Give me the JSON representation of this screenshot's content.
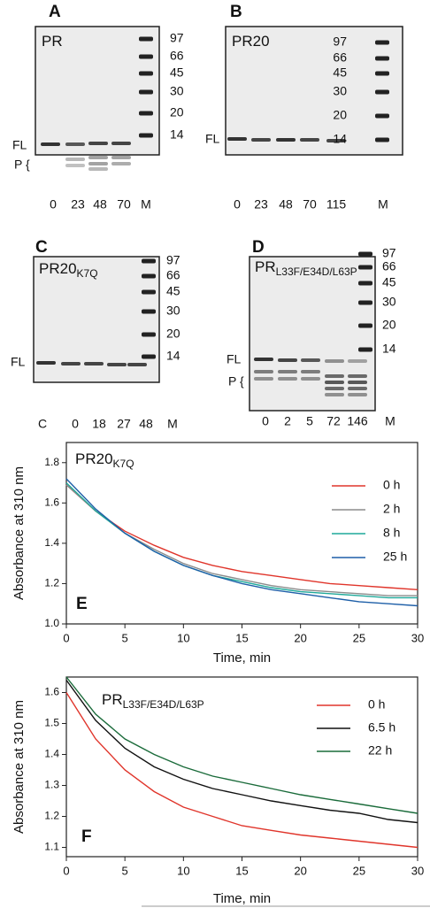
{
  "gels": [
    {
      "label": "A",
      "title": "PR",
      "markers": [
        "97",
        "66",
        "45",
        "30",
        "20",
        "14"
      ],
      "band_labels": [
        "FL",
        "P {"
      ],
      "lanes": [
        "0",
        "23",
        "48",
        "70",
        "M"
      ]
    },
    {
      "label": "B",
      "title": "PR20",
      "markers": [
        "97",
        "66",
        "45",
        "30",
        "20",
        "14"
      ],
      "band_labels": [
        "FL"
      ],
      "lanes": [
        "0",
        "23",
        "48",
        "70",
        "115",
        "M"
      ]
    },
    {
      "label": "C",
      "title": "PR20",
      "title_sub": "K7Q",
      "markers": [
        "97",
        "66",
        "45",
        "30",
        "20",
        "14"
      ],
      "band_labels": [
        "FL"
      ],
      "lanes": [
        "C",
        "0",
        "18",
        "27",
        "48",
        "M"
      ]
    },
    {
      "label": "D",
      "title": "PR",
      "title_sub": "L33F/E34D/L63P",
      "markers": [
        "97",
        "66",
        "45",
        "30",
        "20",
        "14"
      ],
      "band_labels": [
        "FL",
        "P {"
      ],
      "lanes": [
        "0",
        "2",
        "5",
        "72",
        "146",
        "M"
      ]
    }
  ],
  "chart_data": [
    {
      "type": "line",
      "panel": "E",
      "title": "PR20",
      "title_sub": "K7Q",
      "x_label": "Time, min",
      "y_label": "Absorbance at 310 nm",
      "x": [
        0,
        2.5,
        5,
        7.5,
        10,
        12.5,
        15,
        17.5,
        20,
        22.5,
        25,
        27.5,
        30
      ],
      "xlim": [
        0,
        30
      ],
      "xticks": [
        0,
        5,
        10,
        15,
        20,
        25,
        30
      ],
      "ylim": [
        1.0,
        1.9
      ],
      "yticks": [
        {
          "value": 1.0,
          "label": "1.0"
        },
        1.2,
        1.4,
        1.6,
        1.8
      ],
      "legend": "upper right",
      "series": [
        {
          "name": "0 h",
          "color": "#e0352b",
          "values": [
            1.69,
            1.56,
            1.46,
            1.39,
            1.33,
            1.29,
            1.26,
            1.24,
            1.22,
            1.2,
            1.19,
            1.18,
            1.17
          ]
        },
        {
          "name": "2 h",
          "color": "#8c8c8c",
          "values": [
            1.69,
            1.56,
            1.45,
            1.37,
            1.3,
            1.25,
            1.22,
            1.19,
            1.17,
            1.16,
            1.15,
            1.14,
            1.14
          ]
        },
        {
          "name": "8 h",
          "color": "#1fa99a",
          "values": [
            1.7,
            1.56,
            1.45,
            1.36,
            1.29,
            1.24,
            1.21,
            1.18,
            1.16,
            1.15,
            1.14,
            1.13,
            1.13
          ]
        },
        {
          "name": "25 h",
          "color": "#1e5fa8",
          "values": [
            1.72,
            1.57,
            1.45,
            1.36,
            1.29,
            1.24,
            1.2,
            1.17,
            1.15,
            1.13,
            1.11,
            1.1,
            1.09
          ]
        }
      ]
    },
    {
      "type": "line",
      "panel": "F",
      "title": "PR",
      "title_sub": "L33F/E34D/L63P",
      "x_label": "Time, min",
      "y_label": "Absorbance at 310 nm",
      "x": [
        0,
        2.5,
        5,
        7.5,
        10,
        12.5,
        15,
        17.5,
        20,
        22.5,
        25,
        27.5,
        30
      ],
      "xlim": [
        0,
        30
      ],
      "xticks": [
        0,
        5,
        10,
        15,
        20,
        25,
        30
      ],
      "ylim": [
        1.07,
        1.65
      ],
      "yticks": [
        1.1,
        1.2,
        1.3,
        1.4,
        1.5,
        1.6
      ],
      "legend": "upper right",
      "series": [
        {
          "name": "0 h",
          "color": "#e0352b",
          "values": [
            1.6,
            1.45,
            1.35,
            1.28,
            1.23,
            1.2,
            1.17,
            1.155,
            1.14,
            1.13,
            1.12,
            1.11,
            1.1
          ]
        },
        {
          "name": "6.5 h",
          "color": "#111111",
          "values": [
            1.64,
            1.51,
            1.42,
            1.36,
            1.32,
            1.29,
            1.27,
            1.25,
            1.235,
            1.22,
            1.21,
            1.19,
            1.18
          ]
        },
        {
          "name": "22 h",
          "color": "#1a6b3a",
          "values": [
            1.65,
            1.53,
            1.45,
            1.4,
            1.36,
            1.33,
            1.31,
            1.29,
            1.27,
            1.255,
            1.24,
            1.225,
            1.21
          ]
        }
      ]
    }
  ]
}
